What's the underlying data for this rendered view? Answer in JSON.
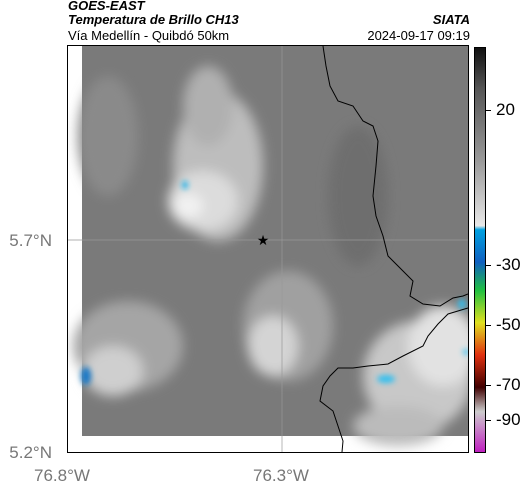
{
  "header": {
    "title": "GOES-EAST",
    "subtitle": "Temperatura de Brillo CH13",
    "route": "Vía Medellín - Quibdó 50km",
    "organization": "SIATA",
    "datetime": "2024-09-17 09:19"
  },
  "axes": {
    "y_ticks": [
      "5.7°N",
      "5.2°N"
    ],
    "x_ticks": [
      "76.8°W",
      "76.3°W"
    ]
  },
  "colorbar": {
    "ticks": [
      "20",
      "-30",
      "-50",
      "-70",
      "-90"
    ],
    "colors": [
      "#111111",
      "#555555",
      "#9a9a9a",
      "#e8e8e8",
      "#00a0e0",
      "#1060c0",
      "#20c040",
      "#e0e020",
      "#e03010",
      "#400000",
      "#cccccc",
      "#c020c0"
    ]
  },
  "map": {
    "background": "#7a7a7a",
    "marker_icon": "star-icon",
    "boundary_color": "#000000"
  }
}
